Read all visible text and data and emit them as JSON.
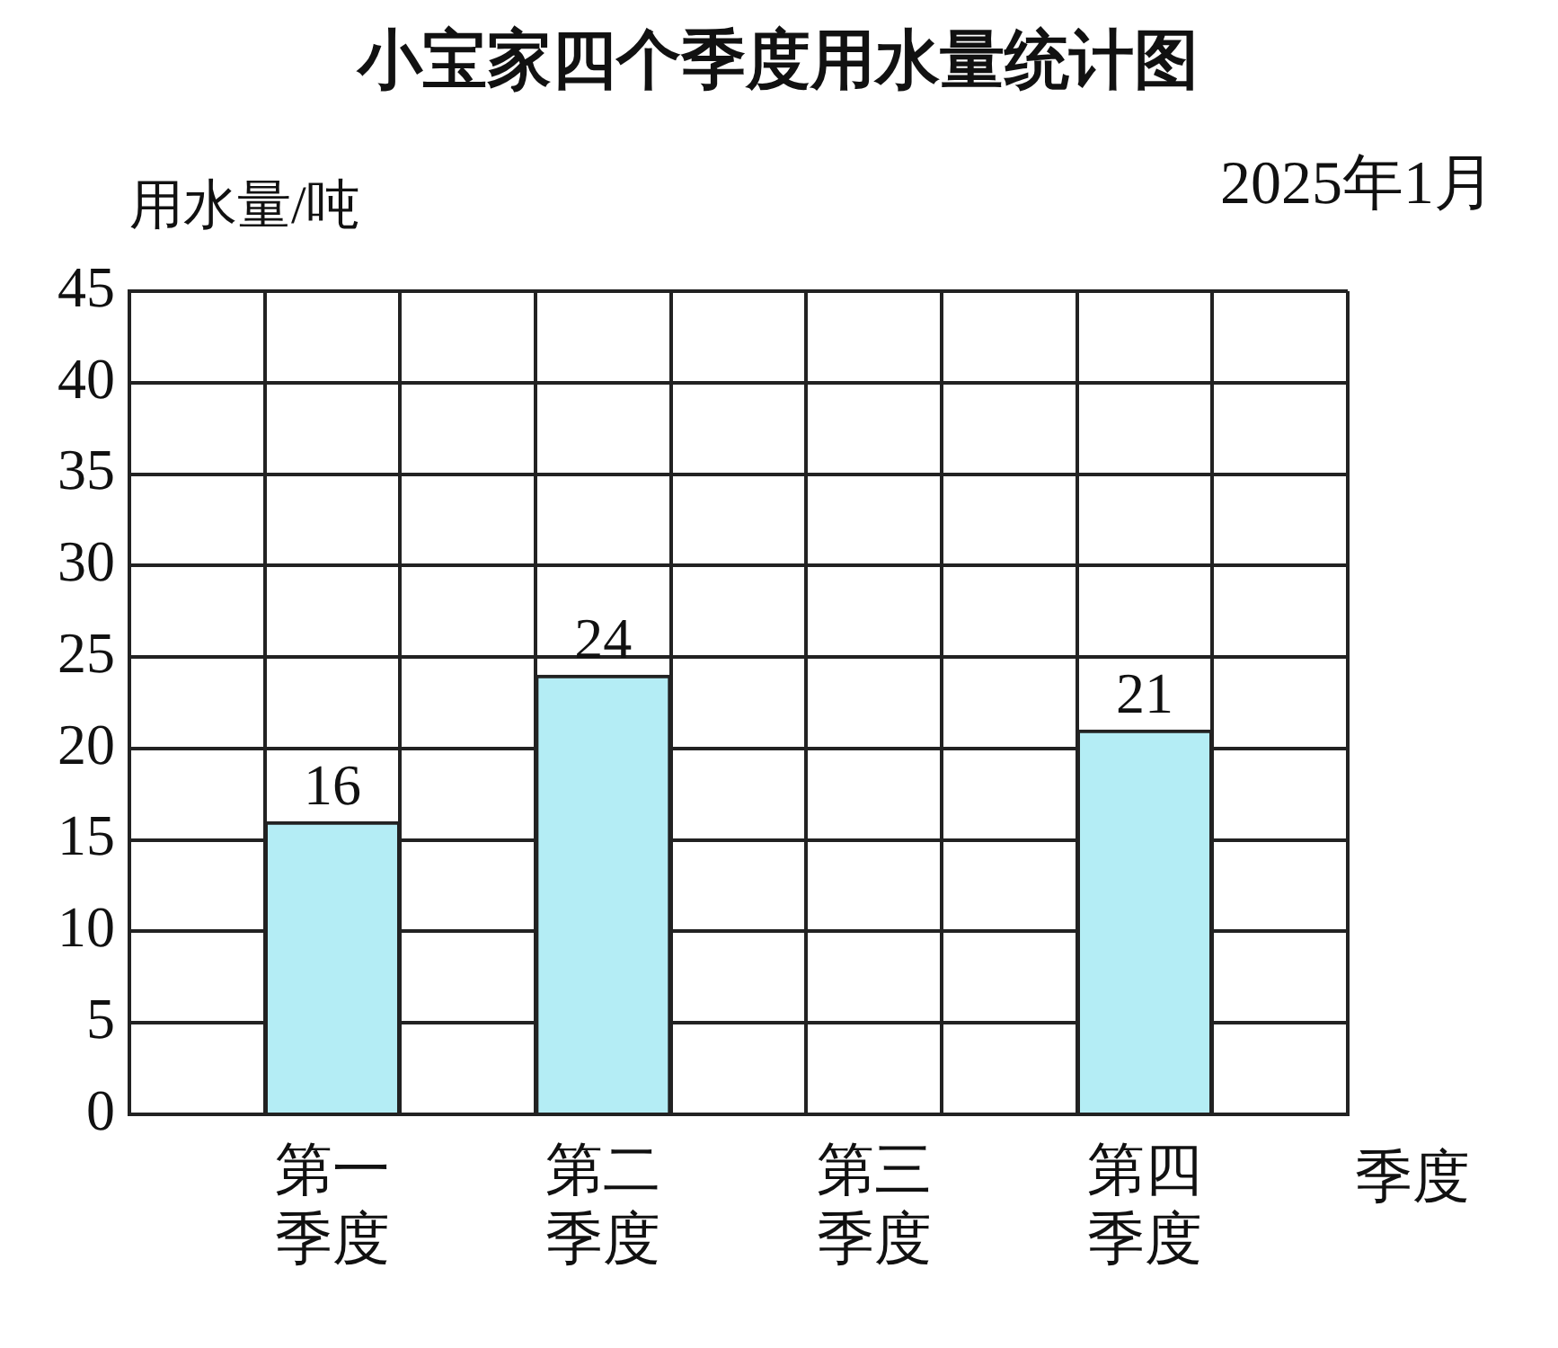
{
  "chart_data": {
    "type": "bar",
    "title": "小宝家四个季度用水量统计图",
    "xlabel": "季度",
    "ylabel": "用水量/吨",
    "annotations": [
      "2025年1月"
    ],
    "categories": [
      null,
      "第一季度",
      null,
      "第二季度",
      null,
      "第三季度",
      null,
      "第四季度",
      null
    ],
    "values": [
      null,
      16,
      null,
      24,
      null,
      null,
      null,
      21,
      null
    ],
    "color": "#b4edf5",
    "ylim": [
      0,
      45
    ],
    "yticks": [
      0,
      5,
      10,
      15,
      20,
      25,
      30,
      35,
      40,
      45
    ],
    "grid": true,
    "data_labels": true
  }
}
